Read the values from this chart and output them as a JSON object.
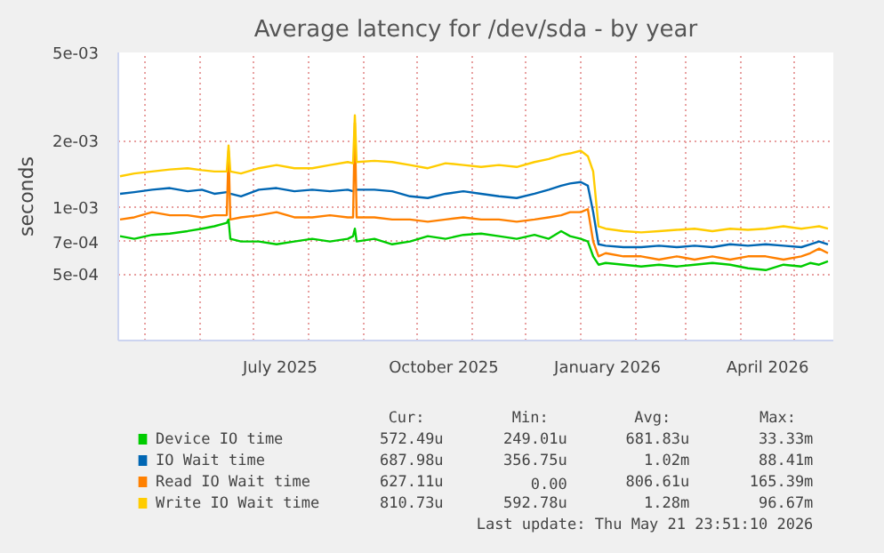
{
  "chart_data": {
    "type": "line",
    "title": "Average latency for /dev/sda - by year",
    "ylabel": "seconds",
    "log": "y",
    "grid": true,
    "legend": "bottom",
    "line_style": "solid",
    "marker": "none",
    "ylim": [
      0.00025,
      0.005
    ],
    "yticks": [
      {
        "value": 0.005,
        "label": "5e-03"
      },
      {
        "value": 0.002,
        "label": "2e-03"
      },
      {
        "value": 0.001,
        "label": "1e-03"
      },
      {
        "value": 0.0007,
        "label": "7e-04"
      },
      {
        "value": 0.0005,
        "label": "5e-04"
      }
    ],
    "xlim": [
      "2025-04-16",
      "2026-05-23"
    ],
    "xticks": [
      {
        "value": "2025-07-16",
        "label": "July 2025"
      },
      {
        "value": "2025-10-16",
        "label": "October 2025"
      },
      {
        "value": "2026-01-16",
        "label": "January 2026"
      },
      {
        "value": "2026-04-16",
        "label": "April 2026"
      }
    ],
    "x": [
      "2025-04-17",
      "2025-04-25",
      "2025-05-05",
      "2025-05-15",
      "2025-05-25",
      "2025-06-02",
      "2025-06-09",
      "2025-06-16",
      "2025-06-17",
      "2025-06-18",
      "2025-06-24",
      "2025-07-04",
      "2025-07-14",
      "2025-07-24",
      "2025-08-03",
      "2025-08-13",
      "2025-08-23",
      "2025-08-26",
      "2025-08-27",
      "2025-08-28",
      "2025-09-07",
      "2025-09-17",
      "2025-09-27",
      "2025-10-07",
      "2025-10-17",
      "2025-10-27",
      "2025-11-06",
      "2025-11-16",
      "2025-11-26",
      "2025-12-06",
      "2025-12-14",
      "2025-12-21",
      "2025-12-26",
      "2026-01-01",
      "2026-01-05",
      "2026-01-08",
      "2026-01-11",
      "2026-01-15",
      "2026-01-25",
      "2026-02-04",
      "2026-02-14",
      "2026-02-24",
      "2026-03-06",
      "2026-03-16",
      "2026-03-26",
      "2026-04-05",
      "2026-04-15",
      "2026-04-25",
      "2026-05-05",
      "2026-05-10",
      "2026-05-15",
      "2026-05-20"
    ],
    "series": [
      {
        "name": "Device IO time",
        "color": "#00cc00",
        "values": [
          0.00074,
          0.00072,
          0.00075,
          0.00076,
          0.00078,
          0.0008,
          0.00082,
          0.00085,
          0.00088,
          0.00072,
          0.0007,
          0.0007,
          0.00068,
          0.0007,
          0.00072,
          0.0007,
          0.00072,
          0.00074,
          0.0008,
          0.0007,
          0.00072,
          0.00068,
          0.0007,
          0.00074,
          0.00072,
          0.00075,
          0.00076,
          0.00074,
          0.00072,
          0.00075,
          0.00072,
          0.00078,
          0.00074,
          0.00072,
          0.0007,
          0.0006,
          0.00055,
          0.00056,
          0.00055,
          0.00054,
          0.00055,
          0.00054,
          0.00055,
          0.00056,
          0.00055,
          0.00053,
          0.00052,
          0.00055,
          0.00054,
          0.00056,
          0.00055,
          0.00057
        ]
      },
      {
        "name": "IO Wait time",
        "color": "#0066b3",
        "values": [
          0.00115,
          0.00117,
          0.0012,
          0.00122,
          0.00118,
          0.0012,
          0.00115,
          0.00117,
          null,
          0.00115,
          0.00112,
          0.0012,
          0.00122,
          0.00118,
          0.0012,
          0.00118,
          0.0012,
          0.00118,
          null,
          0.0012,
          0.0012,
          0.00118,
          0.00112,
          0.0011,
          0.00115,
          0.00118,
          0.00115,
          0.00112,
          0.0011,
          0.00115,
          0.0012,
          0.00125,
          0.00128,
          0.0013,
          0.00125,
          0.00095,
          0.00068,
          0.00067,
          0.00066,
          0.00066,
          0.00067,
          0.00066,
          0.00067,
          0.00066,
          0.00068,
          0.00067,
          0.00068,
          0.00067,
          0.00066,
          0.00068,
          0.0007,
          0.00068
        ]
      },
      {
        "name": "Read IO Wait time",
        "color": "#ff8000",
        "values": [
          0.00088,
          0.0009,
          0.00095,
          0.00092,
          0.00092,
          0.0009,
          0.00092,
          0.00092,
          0.0018,
          0.00088,
          0.0009,
          0.00092,
          0.00095,
          0.0009,
          0.0009,
          0.00092,
          0.0009,
          0.0009,
          0.0024,
          0.0009,
          0.0009,
          0.00088,
          0.00088,
          0.00086,
          0.00088,
          0.0009,
          0.00088,
          0.00088,
          0.00086,
          0.00088,
          0.0009,
          0.00092,
          0.00095,
          0.00095,
          0.00098,
          0.0007,
          0.0006,
          0.00062,
          0.0006,
          0.0006,
          0.00058,
          0.0006,
          0.00058,
          0.0006,
          0.00058,
          0.0006,
          0.0006,
          0.00058,
          0.0006,
          0.00062,
          0.00065,
          0.00062
        ]
      },
      {
        "name": "Write IO Wait time",
        "color": "#ffcc00",
        "values": [
          0.00138,
          0.00142,
          0.00145,
          0.00148,
          0.0015,
          0.00147,
          0.00145,
          0.00145,
          0.0019,
          0.00145,
          0.00142,
          0.0015,
          0.00155,
          0.0015,
          0.0015,
          0.00155,
          0.0016,
          0.00158,
          0.0026,
          0.0016,
          0.00162,
          0.0016,
          0.00155,
          0.0015,
          0.00158,
          0.00155,
          0.00152,
          0.00155,
          0.00152,
          0.0016,
          0.00165,
          0.00172,
          0.00175,
          0.0018,
          0.0017,
          0.00145,
          0.00082,
          0.0008,
          0.00078,
          0.00077,
          0.00078,
          0.00079,
          0.0008,
          0.00078,
          0.0008,
          0.00079,
          0.0008,
          0.00082,
          0.0008,
          0.00081,
          0.00082,
          0.0008
        ]
      }
    ],
    "annotations": [
      "Cur:",
      "Min:",
      "Avg:",
      "Max:",
      "572.49u",
      "249.01u",
      "681.83u",
      "33.33m",
      "687.98u",
      "356.75u",
      "1.02m",
      "88.41m",
      "627.11u",
      "0.00",
      "806.61u",
      "165.39m",
      "810.73u",
      "592.78u",
      "1.28m",
      "96.67m",
      "Last update: Thu May 21 23:51:10 2026"
    ]
  }
}
